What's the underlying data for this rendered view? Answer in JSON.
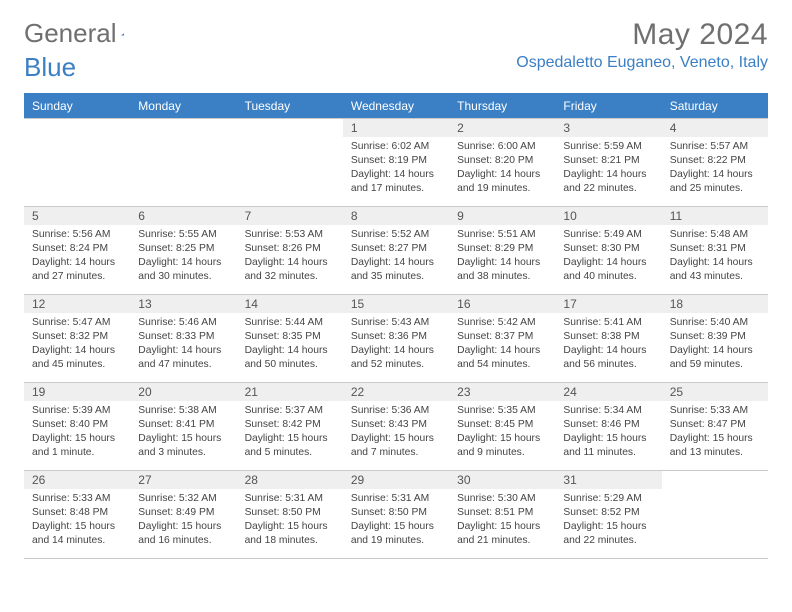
{
  "logo": {
    "part1": "General",
    "part2": "Blue"
  },
  "title": "May 2024",
  "location": "Ospedaletto Euganeo, Veneto, Italy",
  "colors": {
    "header_bg": "#3b7fc4",
    "header_text": "#ffffff",
    "daynum_bg": "#efefef",
    "text": "#444444",
    "title_color": "#6f6f6f",
    "location_color": "#3b7fc4",
    "grid_border": "#c9c9c9"
  },
  "weekdays": [
    "Sunday",
    "Monday",
    "Tuesday",
    "Wednesday",
    "Thursday",
    "Friday",
    "Saturday"
  ],
  "layout": {
    "columns": 7,
    "leading_blanks": 3,
    "font_size_cell": 10.3
  },
  "days": [
    {
      "n": "1",
      "sr": "6:02 AM",
      "ss": "8:19 PM",
      "dl": "14 hours and 17 minutes."
    },
    {
      "n": "2",
      "sr": "6:00 AM",
      "ss": "8:20 PM",
      "dl": "14 hours and 19 minutes."
    },
    {
      "n": "3",
      "sr": "5:59 AM",
      "ss": "8:21 PM",
      "dl": "14 hours and 22 minutes."
    },
    {
      "n": "4",
      "sr": "5:57 AM",
      "ss": "8:22 PM",
      "dl": "14 hours and 25 minutes."
    },
    {
      "n": "5",
      "sr": "5:56 AM",
      "ss": "8:24 PM",
      "dl": "14 hours and 27 minutes."
    },
    {
      "n": "6",
      "sr": "5:55 AM",
      "ss": "8:25 PM",
      "dl": "14 hours and 30 minutes."
    },
    {
      "n": "7",
      "sr": "5:53 AM",
      "ss": "8:26 PM",
      "dl": "14 hours and 32 minutes."
    },
    {
      "n": "8",
      "sr": "5:52 AM",
      "ss": "8:27 PM",
      "dl": "14 hours and 35 minutes."
    },
    {
      "n": "9",
      "sr": "5:51 AM",
      "ss": "8:29 PM",
      "dl": "14 hours and 38 minutes."
    },
    {
      "n": "10",
      "sr": "5:49 AM",
      "ss": "8:30 PM",
      "dl": "14 hours and 40 minutes."
    },
    {
      "n": "11",
      "sr": "5:48 AM",
      "ss": "8:31 PM",
      "dl": "14 hours and 43 minutes."
    },
    {
      "n": "12",
      "sr": "5:47 AM",
      "ss": "8:32 PM",
      "dl": "14 hours and 45 minutes."
    },
    {
      "n": "13",
      "sr": "5:46 AM",
      "ss": "8:33 PM",
      "dl": "14 hours and 47 minutes."
    },
    {
      "n": "14",
      "sr": "5:44 AM",
      "ss": "8:35 PM",
      "dl": "14 hours and 50 minutes."
    },
    {
      "n": "15",
      "sr": "5:43 AM",
      "ss": "8:36 PM",
      "dl": "14 hours and 52 minutes."
    },
    {
      "n": "16",
      "sr": "5:42 AM",
      "ss": "8:37 PM",
      "dl": "14 hours and 54 minutes."
    },
    {
      "n": "17",
      "sr": "5:41 AM",
      "ss": "8:38 PM",
      "dl": "14 hours and 56 minutes."
    },
    {
      "n": "18",
      "sr": "5:40 AM",
      "ss": "8:39 PM",
      "dl": "14 hours and 59 minutes."
    },
    {
      "n": "19",
      "sr": "5:39 AM",
      "ss": "8:40 PM",
      "dl": "15 hours and 1 minute."
    },
    {
      "n": "20",
      "sr": "5:38 AM",
      "ss": "8:41 PM",
      "dl": "15 hours and 3 minutes."
    },
    {
      "n": "21",
      "sr": "5:37 AM",
      "ss": "8:42 PM",
      "dl": "15 hours and 5 minutes."
    },
    {
      "n": "22",
      "sr": "5:36 AM",
      "ss": "8:43 PM",
      "dl": "15 hours and 7 minutes."
    },
    {
      "n": "23",
      "sr": "5:35 AM",
      "ss": "8:45 PM",
      "dl": "15 hours and 9 minutes."
    },
    {
      "n": "24",
      "sr": "5:34 AM",
      "ss": "8:46 PM",
      "dl": "15 hours and 11 minutes."
    },
    {
      "n": "25",
      "sr": "5:33 AM",
      "ss": "8:47 PM",
      "dl": "15 hours and 13 minutes."
    },
    {
      "n": "26",
      "sr": "5:33 AM",
      "ss": "8:48 PM",
      "dl": "15 hours and 14 minutes."
    },
    {
      "n": "27",
      "sr": "5:32 AM",
      "ss": "8:49 PM",
      "dl": "15 hours and 16 minutes."
    },
    {
      "n": "28",
      "sr": "5:31 AM",
      "ss": "8:50 PM",
      "dl": "15 hours and 18 minutes."
    },
    {
      "n": "29",
      "sr": "5:31 AM",
      "ss": "8:50 PM",
      "dl": "15 hours and 19 minutes."
    },
    {
      "n": "30",
      "sr": "5:30 AM",
      "ss": "8:51 PM",
      "dl": "15 hours and 21 minutes."
    },
    {
      "n": "31",
      "sr": "5:29 AM",
      "ss": "8:52 PM",
      "dl": "15 hours and 22 minutes."
    }
  ],
  "labels": {
    "sunrise": "Sunrise: ",
    "sunset": "Sunset: ",
    "daylight": "Daylight: "
  }
}
